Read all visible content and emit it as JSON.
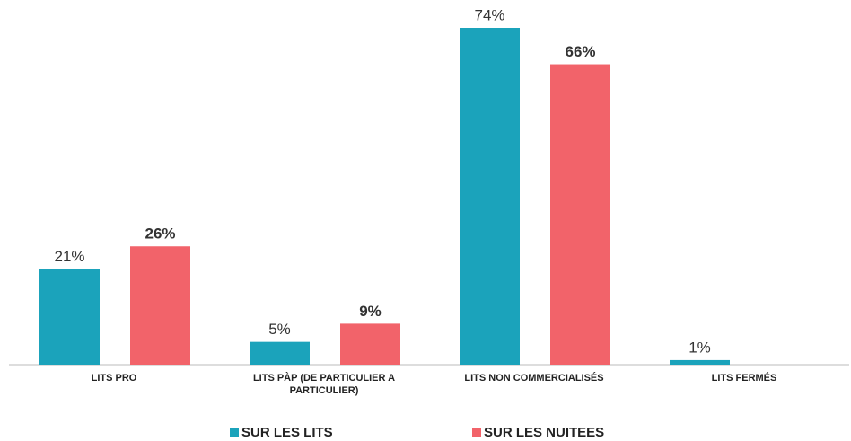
{
  "chart_data": {
    "type": "bar",
    "categories": [
      "LITS PRO",
      "LITS PÀP (DE PARTICULIER A PARTICULIER)",
      "LITS NON COMMERCIALISÉS",
      "LITS FERMÉS"
    ],
    "series": [
      {
        "name": "SUR LES LITS",
        "color": "#1ba3bb",
        "values": [
          21,
          5,
          74,
          1
        ],
        "value_labels": [
          "21%",
          "5%",
          "74%",
          "1%"
        ]
      },
      {
        "name": "SUR LES NUITEES",
        "color": "#f2636a",
        "values": [
          26,
          9,
          66,
          null
        ],
        "value_labels": [
          "26%",
          "9%",
          "66%",
          null
        ]
      }
    ]
  }
}
